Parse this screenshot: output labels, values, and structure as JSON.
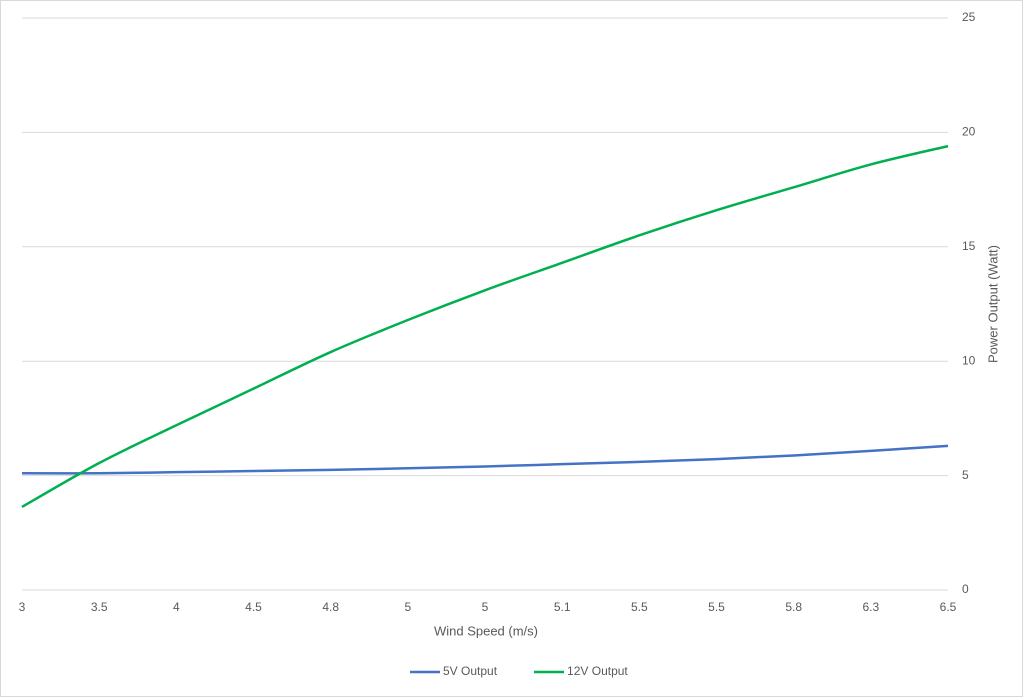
{
  "chart_data": {
    "type": "line",
    "x_label": "Wind Speed (m/s)",
    "y_label": "Power Output (Watt)",
    "categories": [
      "3",
      "3.5",
      "4",
      "4.5",
      "4.8",
      "5",
      "5",
      "5.1",
      "5.5",
      "5.5",
      "5.8",
      "6.3",
      "6.5"
    ],
    "series": [
      {
        "name": "5V Output",
        "color": "#4472c4",
        "values": [
          5.1,
          5.1,
          5.15,
          5.2,
          5.25,
          5.32,
          5.4,
          5.5,
          5.6,
          5.72,
          5.88,
          6.08,
          6.3
        ]
      },
      {
        "name": "12V Output",
        "color": "#00b050",
        "values": [
          3.63,
          5.55,
          7.2,
          8.8,
          10.4,
          11.8,
          13.1,
          14.3,
          15.5,
          16.6,
          17.6,
          18.6,
          19.4
        ]
      }
    ],
    "ylim": [
      0,
      25
    ],
    "yticks": [
      0,
      5,
      10,
      15,
      20,
      25
    ],
    "grid": true,
    "legend": "bottom"
  }
}
